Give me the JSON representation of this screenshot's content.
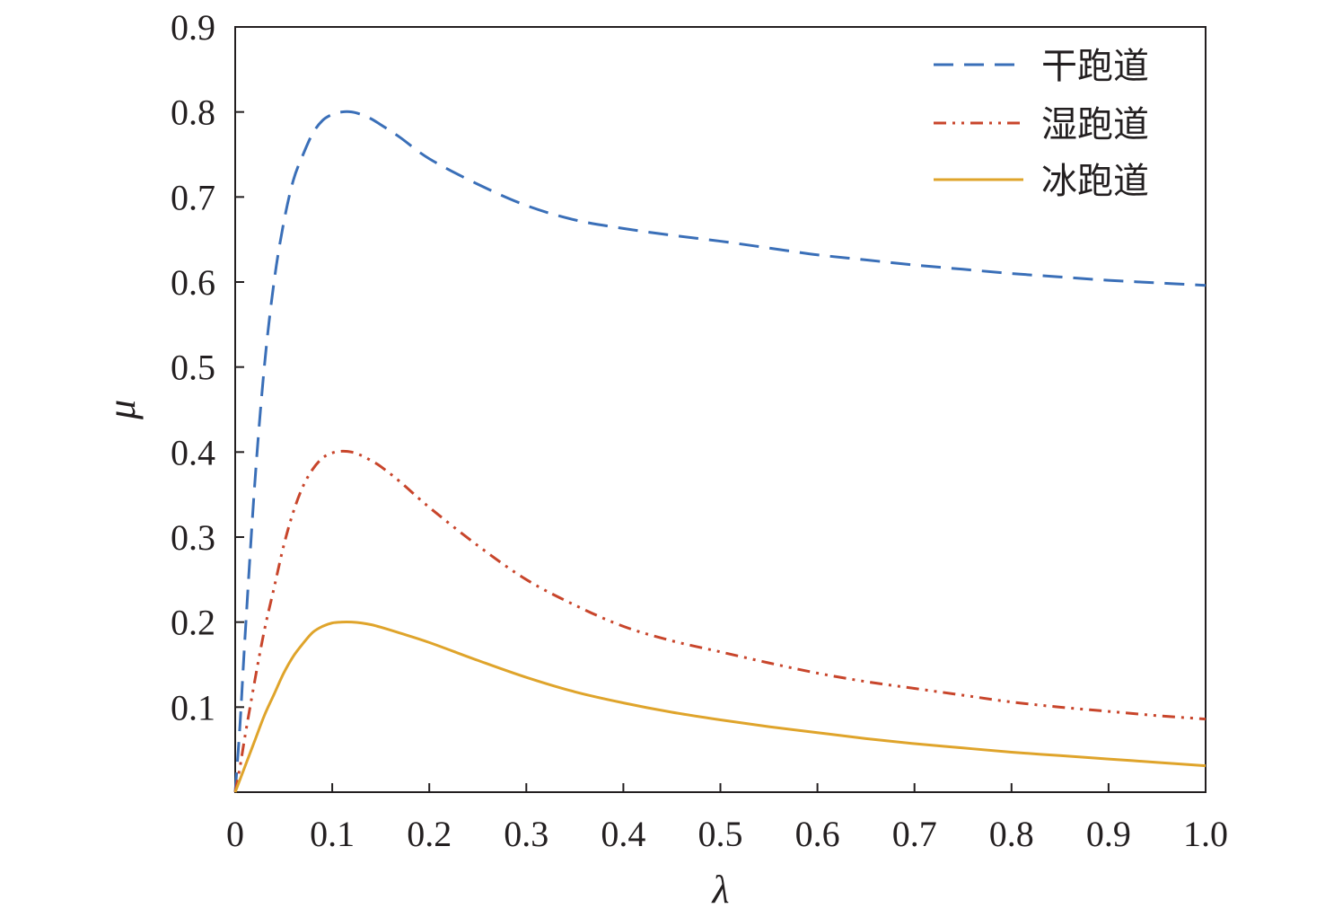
{
  "chart_data": {
    "type": "line",
    "title": "",
    "xlabel": "λ",
    "ylabel": "μ",
    "xlim": [
      0,
      1.0
    ],
    "ylim": [
      0,
      0.9
    ],
    "grid": false,
    "legend_position": "top-right",
    "x_ticks": [
      "0",
      "0.1",
      "0.2",
      "0.3",
      "0.4",
      "0.5",
      "0.6",
      "0.7",
      "0.8",
      "0.9",
      "1.0"
    ],
    "y_ticks": [
      "0.1",
      "0.2",
      "0.3",
      "0.4",
      "0.5",
      "0.6",
      "0.7",
      "0.8",
      "0.9"
    ],
    "x": [
      0,
      0.005,
      0.01,
      0.02,
      0.03,
      0.04,
      0.05,
      0.06,
      0.07,
      0.08,
      0.09,
      0.1,
      0.11,
      0.12,
      0.13,
      0.14,
      0.15,
      0.17,
      0.2,
      0.25,
      0.3,
      0.35,
      0.4,
      0.45,
      0.5,
      0.55,
      0.6,
      0.65,
      0.7,
      0.75,
      0.8,
      0.85,
      0.9,
      0.95,
      1.0
    ],
    "series": [
      {
        "name": "干跑道",
        "color": "#3a6fb8",
        "dash": "dashed",
        "values": [
          0.0,
          0.08,
          0.18,
          0.36,
          0.5,
          0.6,
          0.67,
          0.72,
          0.75,
          0.775,
          0.79,
          0.797,
          0.8,
          0.8,
          0.797,
          0.792,
          0.785,
          0.77,
          0.745,
          0.715,
          0.69,
          0.673,
          0.663,
          0.655,
          0.648,
          0.64,
          0.632,
          0.626,
          0.62,
          0.615,
          0.61,
          0.606,
          0.602,
          0.599,
          0.596
        ]
      },
      {
        "name": "湿跑道",
        "color": "#c8452b",
        "dash": "dashdotdot",
        "values": [
          0.0,
          0.03,
          0.065,
          0.13,
          0.19,
          0.24,
          0.29,
          0.33,
          0.36,
          0.38,
          0.393,
          0.399,
          0.401,
          0.4,
          0.396,
          0.39,
          0.383,
          0.365,
          0.335,
          0.29,
          0.25,
          0.22,
          0.195,
          0.178,
          0.165,
          0.152,
          0.14,
          0.13,
          0.122,
          0.114,
          0.106,
          0.1,
          0.095,
          0.09,
          0.086
        ]
      },
      {
        "name": "冰跑道",
        "color": "#dfa42b",
        "dash": "solid",
        "values": [
          0.0,
          0.015,
          0.03,
          0.06,
          0.09,
          0.115,
          0.14,
          0.16,
          0.175,
          0.188,
          0.195,
          0.199,
          0.2,
          0.2,
          0.199,
          0.197,
          0.194,
          0.187,
          0.176,
          0.155,
          0.135,
          0.118,
          0.105,
          0.094,
          0.085,
          0.077,
          0.07,
          0.063,
          0.057,
          0.052,
          0.047,
          0.043,
          0.039,
          0.035,
          0.031
        ]
      }
    ]
  }
}
